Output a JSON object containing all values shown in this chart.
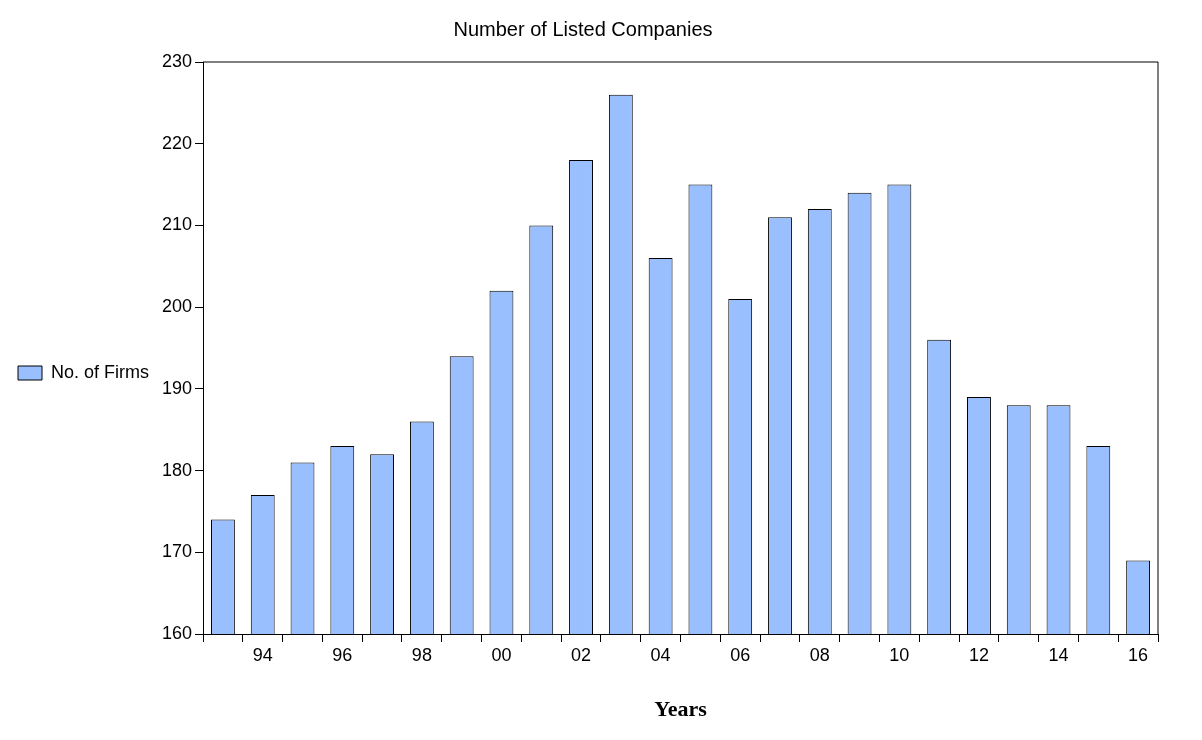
{
  "chart_data": {
    "type": "bar",
    "title": "Number of Listed Companies",
    "xlabel": "Years",
    "categories": [
      null,
      "94",
      null,
      "96",
      null,
      "98",
      null,
      "00",
      null,
      "02",
      null,
      "04",
      null,
      "06",
      null,
      "08",
      null,
      "10",
      null,
      "12",
      null,
      "14",
      null,
      "16"
    ],
    "series": [
      {
        "name": "No. of Firms",
        "color": "#99bfff",
        "values": [
          174,
          177,
          181,
          183,
          182,
          186,
          194,
          202,
          210,
          218,
          226,
          206,
          215,
          201,
          211,
          212,
          214,
          215,
          196,
          189,
          188,
          188,
          183,
          169
        ]
      }
    ],
    "ylim": [
      160,
      230
    ],
    "yticks": [
      160,
      170,
      180,
      190,
      200,
      210,
      220,
      230
    ],
    "grid": false,
    "legend": "left"
  }
}
